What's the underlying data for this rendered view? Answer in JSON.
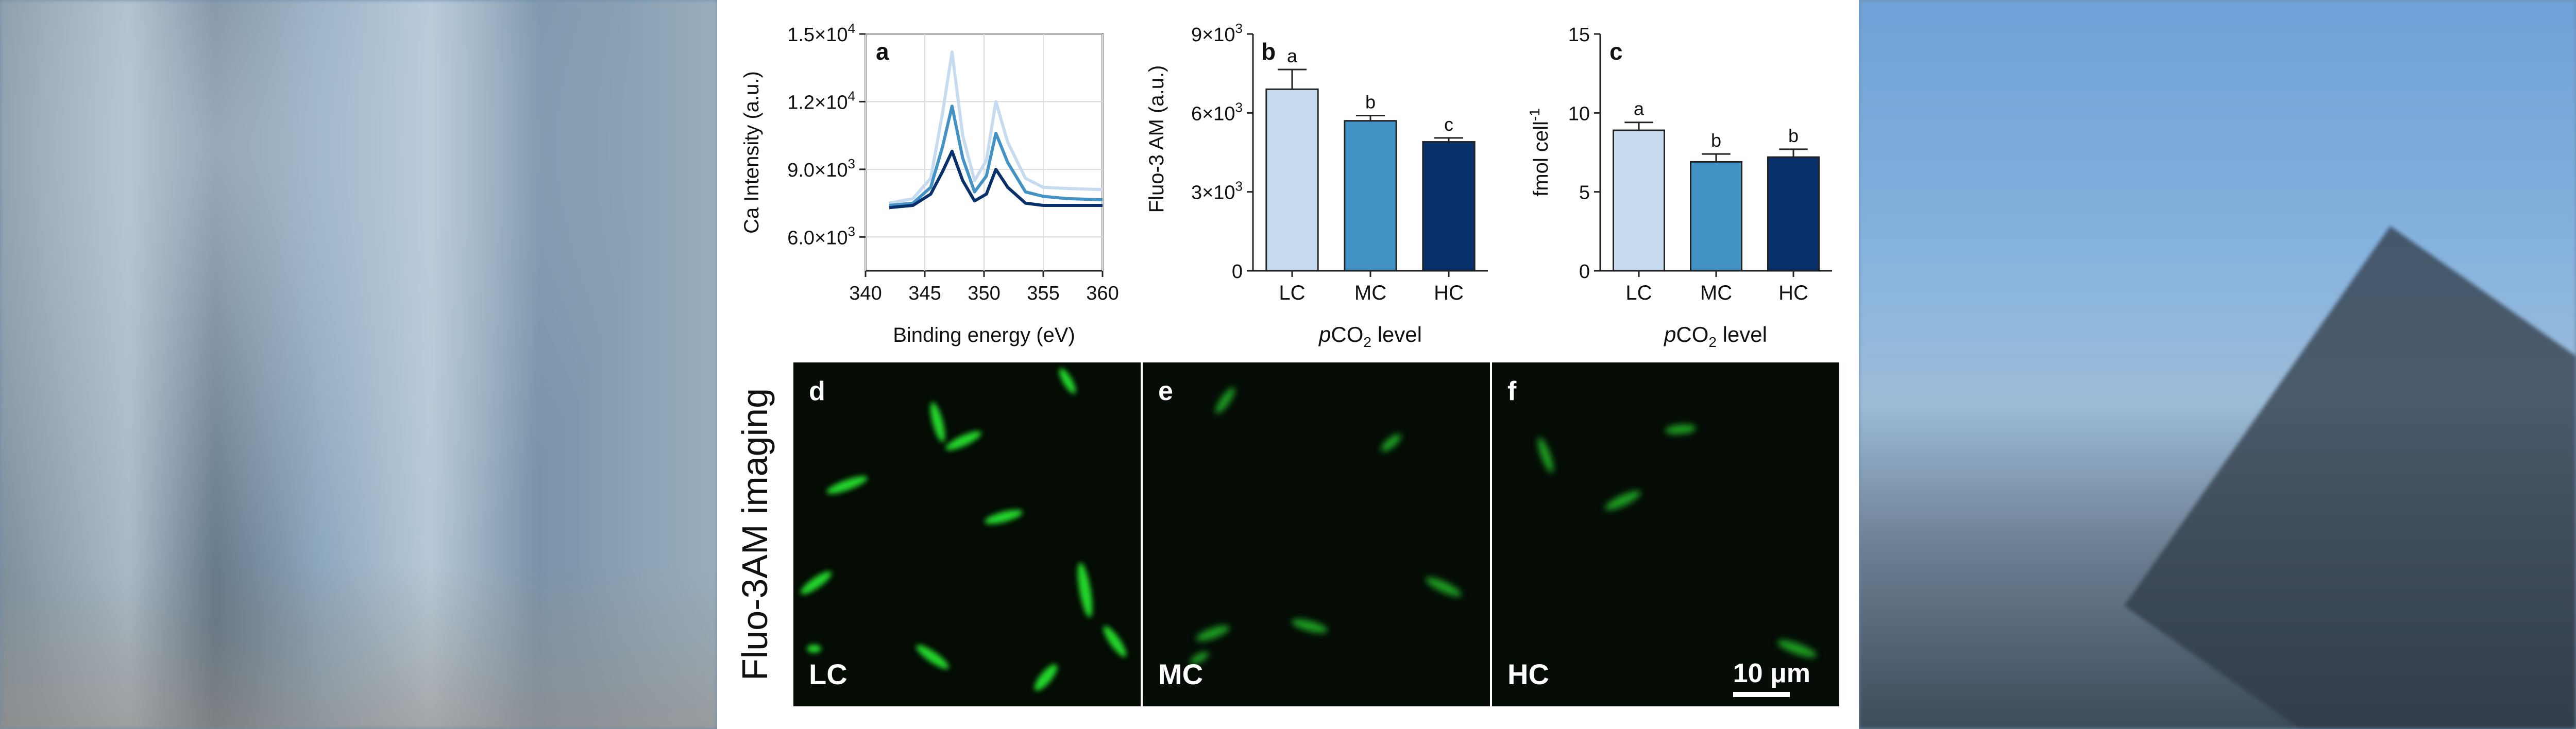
{
  "figure": {
    "panel_a": {
      "letter": "a",
      "ylabel": "Ca Intensity (a.u.)",
      "xlabel": "Binding energy (eV)",
      "x_ticks": [
        "340",
        "345",
        "350",
        "355",
        "360"
      ],
      "y_ticks": [
        {
          "mant": "6.0×10",
          "exp": "3"
        },
        {
          "mant": "9.0×10",
          "exp": "3"
        },
        {
          "mant": "1.2×10",
          "exp": "4"
        },
        {
          "mant": "1.5×10",
          "exp": "4"
        }
      ]
    },
    "panel_b": {
      "letter": "b",
      "ylabel": "Fluo-3 AM (a.u.)",
      "xlabel_pre": "p",
      "xlabel_mid": "CO",
      "xlabel_sub": "2",
      "xlabel_post": " level",
      "y_ticks": [
        {
          "mant": "0",
          "exp": ""
        },
        {
          "mant": "3×10",
          "exp": "3"
        },
        {
          "mant": "6×10",
          "exp": "3"
        },
        {
          "mant": "9×10",
          "exp": "3"
        }
      ]
    },
    "panel_c": {
      "letter": "c",
      "ylabel_main": "fmol cell",
      "ylabel_sup": "-1",
      "xlabel_pre": "p",
      "xlabel_mid": "CO",
      "xlabel_sub": "2",
      "xlabel_post": " level",
      "y_ticks": [
        "0",
        "5",
        "10",
        "15"
      ]
    },
    "side_label": "Fluo-3AM imaging",
    "micrographs": [
      {
        "letter": "d",
        "label": "LC"
      },
      {
        "letter": "e",
        "label": "MC"
      },
      {
        "letter": "f",
        "label": "HC"
      }
    ],
    "scale_bar": "10 μm"
  },
  "chart_data": [
    {
      "type": "line",
      "panel": "a",
      "xlabel": "Binding energy (eV)",
      "ylabel": "Ca Intensity (a.u.)",
      "xlim": [
        340,
        360
      ],
      "ylim": [
        4500,
        15000
      ],
      "grid": true,
      "series": [
        {
          "color": "#c6dbef",
          "x": [
            342,
            344,
            345.5,
            346.5,
            347.3,
            348.2,
            349.2,
            350.2,
            351.0,
            352.0,
            353.5,
            355,
            357,
            360
          ],
          "y": [
            7500,
            7700,
            8600,
            11500,
            14200,
            10500,
            8500,
            9400,
            12000,
            10200,
            8600,
            8200,
            8150,
            8100
          ]
        },
        {
          "color": "#4292c6",
          "x": [
            342,
            344,
            345.5,
            346.5,
            347.3,
            348.2,
            349.2,
            350.2,
            351.0,
            352.0,
            353.5,
            355,
            357,
            360
          ],
          "y": [
            7400,
            7500,
            8200,
            10000,
            11800,
            9500,
            8000,
            8700,
            10600,
            9300,
            8000,
            7800,
            7700,
            7650
          ]
        },
        {
          "color": "#08306b",
          "x": [
            342,
            344,
            345.5,
            346.5,
            347.3,
            348.2,
            349.2,
            350.2,
            351.0,
            352.0,
            353.5,
            355,
            357,
            360
          ],
          "y": [
            7300,
            7400,
            7900,
            8900,
            9800,
            8500,
            7600,
            7900,
            9000,
            8200,
            7500,
            7400,
            7400,
            7400
          ]
        }
      ]
    },
    {
      "type": "bar",
      "panel": "b",
      "categories": [
        "LC",
        "MC",
        "HC"
      ],
      "values": [
        6900,
        5700,
        4900
      ],
      "errors": [
        750,
        200,
        150
      ],
      "letters": [
        "a",
        "b",
        "c"
      ],
      "colors": [
        "#c6dbef",
        "#4292c6",
        "#08306b"
      ],
      "ylim": [
        0,
        9000
      ]
    },
    {
      "type": "bar",
      "panel": "c",
      "categories": [
        "LC",
        "MC",
        "HC"
      ],
      "values": [
        8.9,
        6.9,
        7.2
      ],
      "errors": [
        0.5,
        0.5,
        0.5
      ],
      "letters": [
        "a",
        "b",
        "b"
      ],
      "colors": [
        "#c6dbef",
        "#4292c6",
        "#08306b"
      ],
      "ylim": [
        0,
        15
      ]
    }
  ]
}
